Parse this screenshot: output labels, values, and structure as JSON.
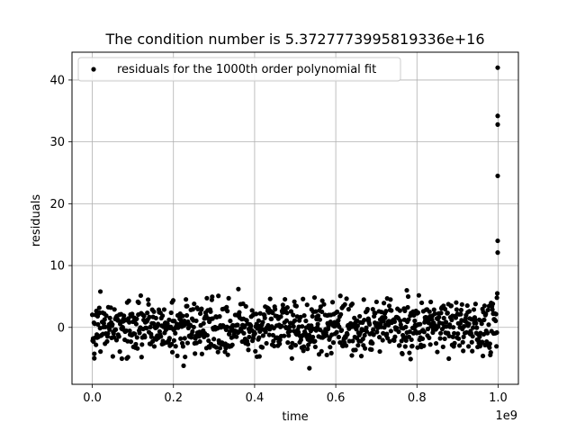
{
  "chart_data": {
    "type": "scatter",
    "title": "The condition number is 5.3727773995819336e+16",
    "xlabel": "time",
    "ylabel": "residuals",
    "x_offset_label": "1e9",
    "xlim": [
      -0.05,
      1.05
    ],
    "ylim": [
      -9.2,
      44.5
    ],
    "x_ticks": [
      0.0,
      0.2,
      0.4,
      0.6,
      0.8,
      1.0
    ],
    "x_tick_labels": [
      "0.0",
      "0.2",
      "0.4",
      "0.6",
      "0.8",
      "1.0"
    ],
    "y_ticks": [
      0,
      10,
      20,
      30,
      40
    ],
    "y_tick_labels": [
      "0",
      "10",
      "20",
      "30",
      "40"
    ],
    "grid": true,
    "legend": {
      "placement": "upper-left",
      "entries": [
        "residuals for the 1000th order polynomial fit"
      ]
    },
    "marker_color": "#000000",
    "series": [
      {
        "name": "residuals for the 1000th order polynomial fit",
        "n_points": 1000,
        "noise_std": 2.2,
        "outliers": [
          {
            "x": 0.999,
            "y": 42.0
          },
          {
            "x": 0.999,
            "y": 34.2
          },
          {
            "x": 0.999,
            "y": 32.8
          },
          {
            "x": 0.999,
            "y": 24.5
          },
          {
            "x": 0.999,
            "y": 14.0
          },
          {
            "x": 0.999,
            "y": 12.1
          },
          {
            "x": 0.998,
            "y": 5.5
          },
          {
            "x": 0.997,
            "y": 4.8
          },
          {
            "x": 0.535,
            "y": -6.6
          },
          {
            "x": 0.225,
            "y": -6.2
          },
          {
            "x": 0.36,
            "y": 6.2
          },
          {
            "x": 0.775,
            "y": 6.0
          },
          {
            "x": 0.02,
            "y": 5.8
          },
          {
            "x": 0.005,
            "y": -5.0
          }
        ]
      }
    ]
  }
}
